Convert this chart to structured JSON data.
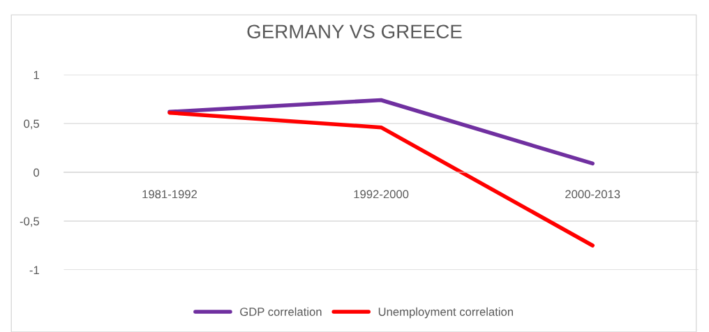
{
  "chart_data": {
    "type": "line",
    "title": "GERMANY VS GREECE",
    "categories": [
      "1981-1992",
      "1992-2000",
      "2000-2013"
    ],
    "series": [
      {
        "name": "GDP correlation",
        "color": "#7030a0",
        "values": [
          0.62,
          0.74,
          0.09
        ]
      },
      {
        "name": "Unemployment correlation",
        "color": "#ff0000",
        "values": [
          0.61,
          0.46,
          -0.75
        ]
      }
    ],
    "ylim": [
      -1,
      1
    ],
    "yticks": [
      {
        "value": -1,
        "label": "-1"
      },
      {
        "value": -0.5,
        "label": "-0,5"
      },
      {
        "value": 0,
        "label": "0"
      },
      {
        "value": 0.5,
        "label": "0,5"
      },
      {
        "value": 1,
        "label": "1"
      }
    ],
    "grid": "y",
    "legend": "bottom",
    "marker": "none",
    "line_style": "solid"
  }
}
